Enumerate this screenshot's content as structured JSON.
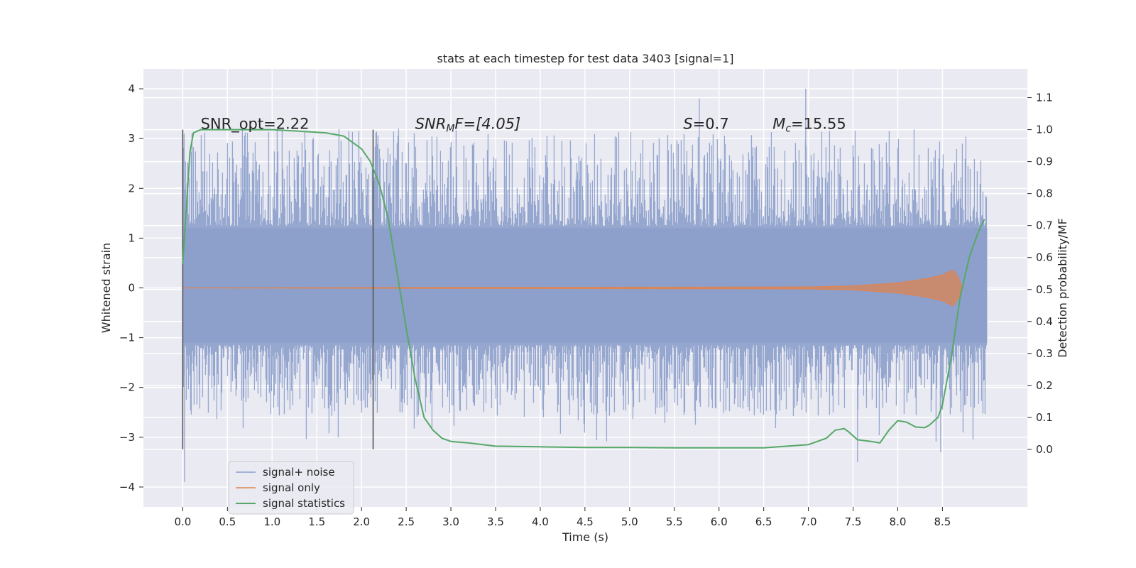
{
  "chart_data": {
    "type": "line",
    "title": "stats at each timestep for test data 3403 [signal=1]",
    "xlabel": "Time (s)",
    "ylabel": "Whitened strain",
    "ylabel_right": "Detection probability/MF",
    "xlim": [
      -0.44,
      9.45
    ],
    "ylim": [
      -4.4,
      4.4
    ],
    "ylim_right": [
      -0.18,
      1.19
    ],
    "x_ticks": [
      "0.0",
      "0.5",
      "1.0",
      "1.5",
      "2.0",
      "2.5",
      "3.0",
      "3.5",
      "4.0",
      "4.5",
      "5.0",
      "5.5",
      "6.0",
      "6.5",
      "7.0",
      "7.5",
      "8.0",
      "8.5"
    ],
    "y_ticks": [
      "4",
      "3",
      "2",
      "1",
      "0",
      "−1",
      "−2",
      "−3",
      "−4"
    ],
    "y_right_ticks": [
      "1.1",
      "1.0",
      "0.9",
      "0.8",
      "0.7",
      "0.6",
      "0.5",
      "0.4",
      "0.3",
      "0.2",
      "0.1",
      "0.0"
    ],
    "grid": true,
    "legend_position": "bottom-left",
    "colors": {
      "signal_noise": "#8da0cb",
      "signal_only": "#dd8452",
      "statistics": "#55a868",
      "window_marker": "#555555",
      "plot_bg": "#eaeaf2",
      "grid": "#ffffff"
    },
    "series": [
      {
        "name": "signal+ noise",
        "axis": "left",
        "x_range": [
          0.0,
          9.0
        ],
        "typical_envelope": [
          -1.9,
          2.4
        ],
        "extreme_points": [
          {
            "x": 0.0,
            "y": 3.1
          },
          {
            "x": 0.02,
            "y": -3.9
          },
          {
            "x": 5.78,
            "y": 3.8
          },
          {
            "x": 6.97,
            "y": 4.0
          },
          {
            "x": 7.55,
            "y": -3.5
          },
          {
            "x": 8.48,
            "y": -3.3
          }
        ]
      },
      {
        "name": "signal only",
        "axis": "left",
        "x": [
          0.0,
          7.0,
          7.5,
          8.0,
          8.3,
          8.5,
          8.62,
          8.68,
          8.72
        ],
        "amplitude": [
          0.0,
          0.02,
          0.04,
          0.1,
          0.18,
          0.26,
          0.36,
          0.2,
          0.0
        ]
      },
      {
        "name": "signal statistics",
        "axis": "right",
        "x": [
          0.0,
          0.05,
          0.08,
          0.12,
          0.2,
          0.3,
          0.5,
          1.0,
          1.3,
          1.6,
          1.8,
          1.9,
          2.0,
          2.1,
          2.2,
          2.3,
          2.4,
          2.5,
          2.6,
          2.7,
          2.8,
          2.9,
          3.0,
          3.2,
          3.5,
          4.0,
          4.5,
          5.0,
          5.5,
          6.0,
          6.5,
          7.0,
          7.2,
          7.3,
          7.4,
          7.45,
          7.55,
          7.7,
          7.8,
          7.9,
          8.0,
          8.1,
          8.2,
          8.3,
          8.35,
          8.45,
          8.5,
          8.6,
          8.7,
          8.8,
          8.9,
          8.97
        ],
        "values": [
          0.58,
          0.8,
          0.93,
          0.99,
          1.0,
          1.0,
          1.0,
          1.0,
          0.995,
          0.99,
          0.98,
          0.96,
          0.94,
          0.9,
          0.83,
          0.72,
          0.55,
          0.38,
          0.22,
          0.1,
          0.06,
          0.035,
          0.025,
          0.02,
          0.01,
          0.008,
          0.006,
          0.006,
          0.005,
          0.005,
          0.005,
          0.015,
          0.035,
          0.06,
          0.065,
          0.055,
          0.03,
          0.025,
          0.02,
          0.06,
          0.09,
          0.085,
          0.07,
          0.068,
          0.075,
          0.1,
          0.14,
          0.29,
          0.48,
          0.6,
          0.68,
          0.72
        ]
      }
    ],
    "vertical_markers": [
      0.0,
      2.13
    ],
    "annotations": [
      {
        "x": 0.2,
        "y": 1.0,
        "text": "SNR_opt=2.22"
      },
      {
        "x": 2.6,
        "y": 1.0,
        "text": "SNR_MF=[4.05]"
      },
      {
        "x": 5.6,
        "y": 1.0,
        "text": "S=0.7"
      },
      {
        "x": 6.6,
        "y": 1.0,
        "text": "M_c=15.55"
      }
    ],
    "annotation_labels": {
      "snr_opt": "SNR_opt=2.22",
      "snr_mf_base": "SNR",
      "snr_mf_sub": "M",
      "snr_mf_rest": "F=[4.05]",
      "s_base": "S",
      "s_rest": "=0.7",
      "mc_base": "M",
      "mc_sub": "c",
      "mc_rest": "=15.55"
    },
    "legend": [
      "signal+ noise",
      "signal only",
      "signal statistics"
    ]
  }
}
